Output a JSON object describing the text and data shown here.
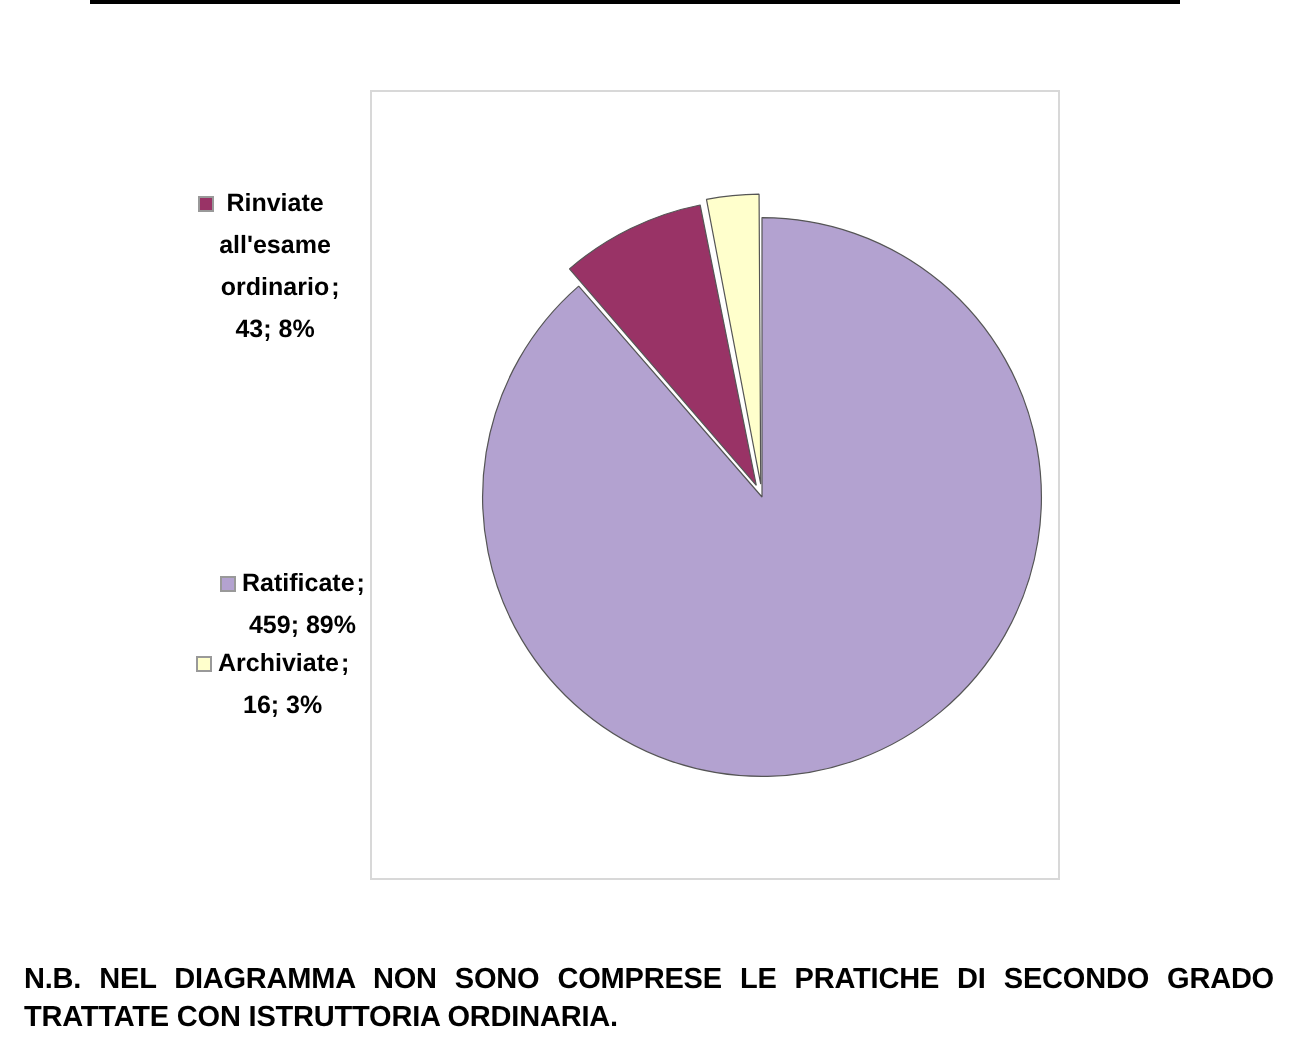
{
  "chart_data": {
    "type": "pie",
    "categories": [
      "Ratificate",
      "Rinviate all'esame ordinario",
      "Archiviate"
    ],
    "values": [
      459,
      43,
      16
    ],
    "colors": [
      "#b3a2d0",
      "#993366",
      "#ffffcc"
    ],
    "value_labels": [
      "; 459; 89%",
      "; 43; 8%",
      "; 16; 3%"
    ],
    "legend": "left",
    "annotations": [
      "N.B.   NEL DIAGRAMMA NON SONO COMPRESE LE PRATICHE DI SECONDO GRADO TRATTATE CON ISTRUTTORIA ORDINARIA."
    ]
  }
}
